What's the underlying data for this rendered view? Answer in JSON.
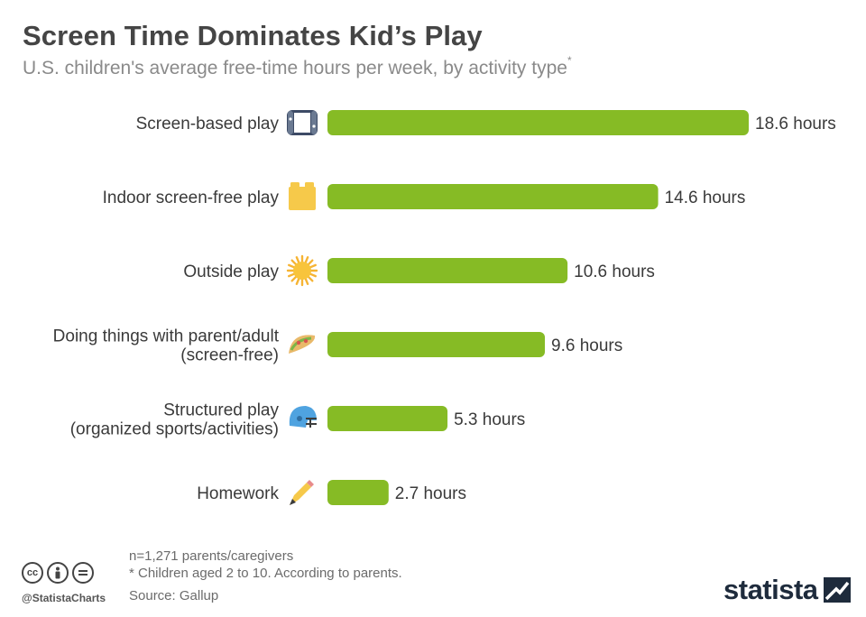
{
  "header": {
    "title": "Screen Time Dominates Kid’s Play",
    "subtitle": "U.S. children's average free-time hours per week, by activity type",
    "subtitle_mark": "*"
  },
  "chart_data": {
    "type": "bar",
    "orientation": "horizontal",
    "categories": [
      "Screen-based play",
      "Indoor screen-free play",
      "Outside play",
      "Doing things with parent/adult (screen-free)",
      "Structured play (organized sports/activities)",
      "Homework"
    ],
    "category_lines": [
      [
        "Screen-based play"
      ],
      [
        "Indoor screen-free play"
      ],
      [
        "Outside play"
      ],
      [
        "Doing things with parent/adult",
        "(screen-free)"
      ],
      [
        "Structured play",
        "(organized sports/activities)"
      ],
      [
        "Homework"
      ]
    ],
    "values": [
      18.6,
      14.6,
      10.6,
      9.6,
      5.3,
      2.7
    ],
    "value_labels": [
      "18.6 hours",
      "14.6 hours",
      "10.6 hours",
      "9.6 hours",
      "5.3 hours",
      "2.7 hours"
    ],
    "icons": [
      "game-console-icon",
      "toy-block-icon",
      "sun-icon",
      "taco-icon",
      "football-helmet-icon",
      "pencil-icon"
    ],
    "bar_color": "#86bb25",
    "xlim": [
      0,
      18.6
    ],
    "grid": false,
    "legend": "none"
  },
  "footer": {
    "notes": [
      "n=1,271 parents/caregivers",
      "* Children aged 2 to 10. According to parents."
    ],
    "source": "Source: Gallup",
    "handle": "@StatistaCharts",
    "brand": "statista"
  },
  "colors": {
    "bar": "#86bb25",
    "title": "#454545",
    "subtitle": "#8a8a8a",
    "brand": "#1e2b3c"
  }
}
